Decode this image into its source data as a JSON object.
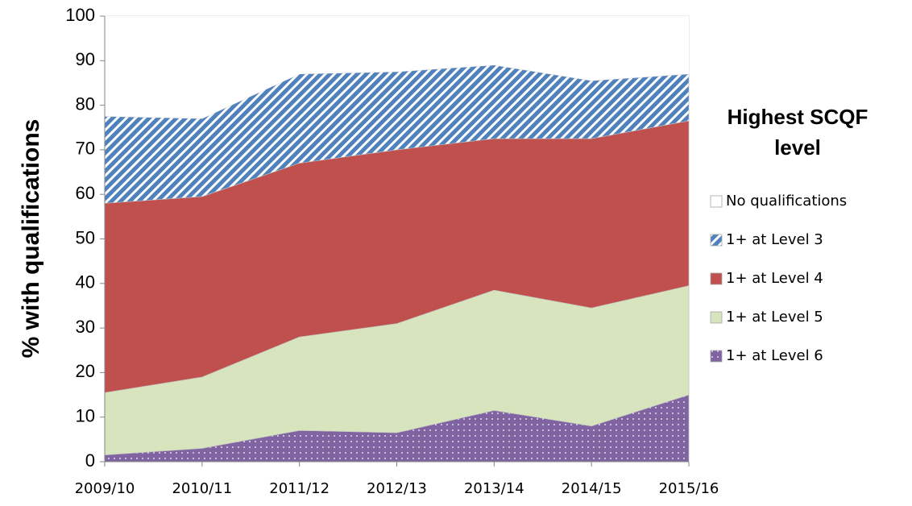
{
  "chart_data": {
    "type": "stacked_area",
    "y_label": "% with qualifications",
    "legend_title": "Highest SCQF level",
    "categories": [
      "2009/10",
      "2010/11",
      "2011/12",
      "2012/13",
      "2013/14",
      "2014/15",
      "2015/16"
    ],
    "series": [
      {
        "name": "1+ at Level 6",
        "color": "#8064a2",
        "pattern": "dots",
        "values": [
          1.5,
          3,
          7,
          6.5,
          11.5,
          8,
          15
        ]
      },
      {
        "name": "1+ at Level 5",
        "color": "#d7e4bd",
        "values": [
          14,
          16,
          21,
          24.5,
          27,
          26.5,
          24.5
        ]
      },
      {
        "name": "1+ at Level 4",
        "color": "#c0504d",
        "values": [
          42.5,
          40.5,
          39,
          39,
          34,
          38,
          37
        ]
      },
      {
        "name": "1+ at Level 3",
        "color": "#4f81bd",
        "pattern": "hatch",
        "values": [
          19.5,
          17.5,
          20,
          17.5,
          16.5,
          13,
          10.5
        ]
      },
      {
        "name": "No qualifications",
        "color": "#ffffff",
        "values": [
          22.5,
          23,
          13,
          12.5,
          11,
          14.5,
          13
        ]
      }
    ],
    "ylim": [
      0,
      100
    ],
    "yticks": [
      0,
      10,
      20,
      30,
      40,
      50,
      60,
      70,
      80,
      90,
      100
    ],
    "legend": "right"
  }
}
